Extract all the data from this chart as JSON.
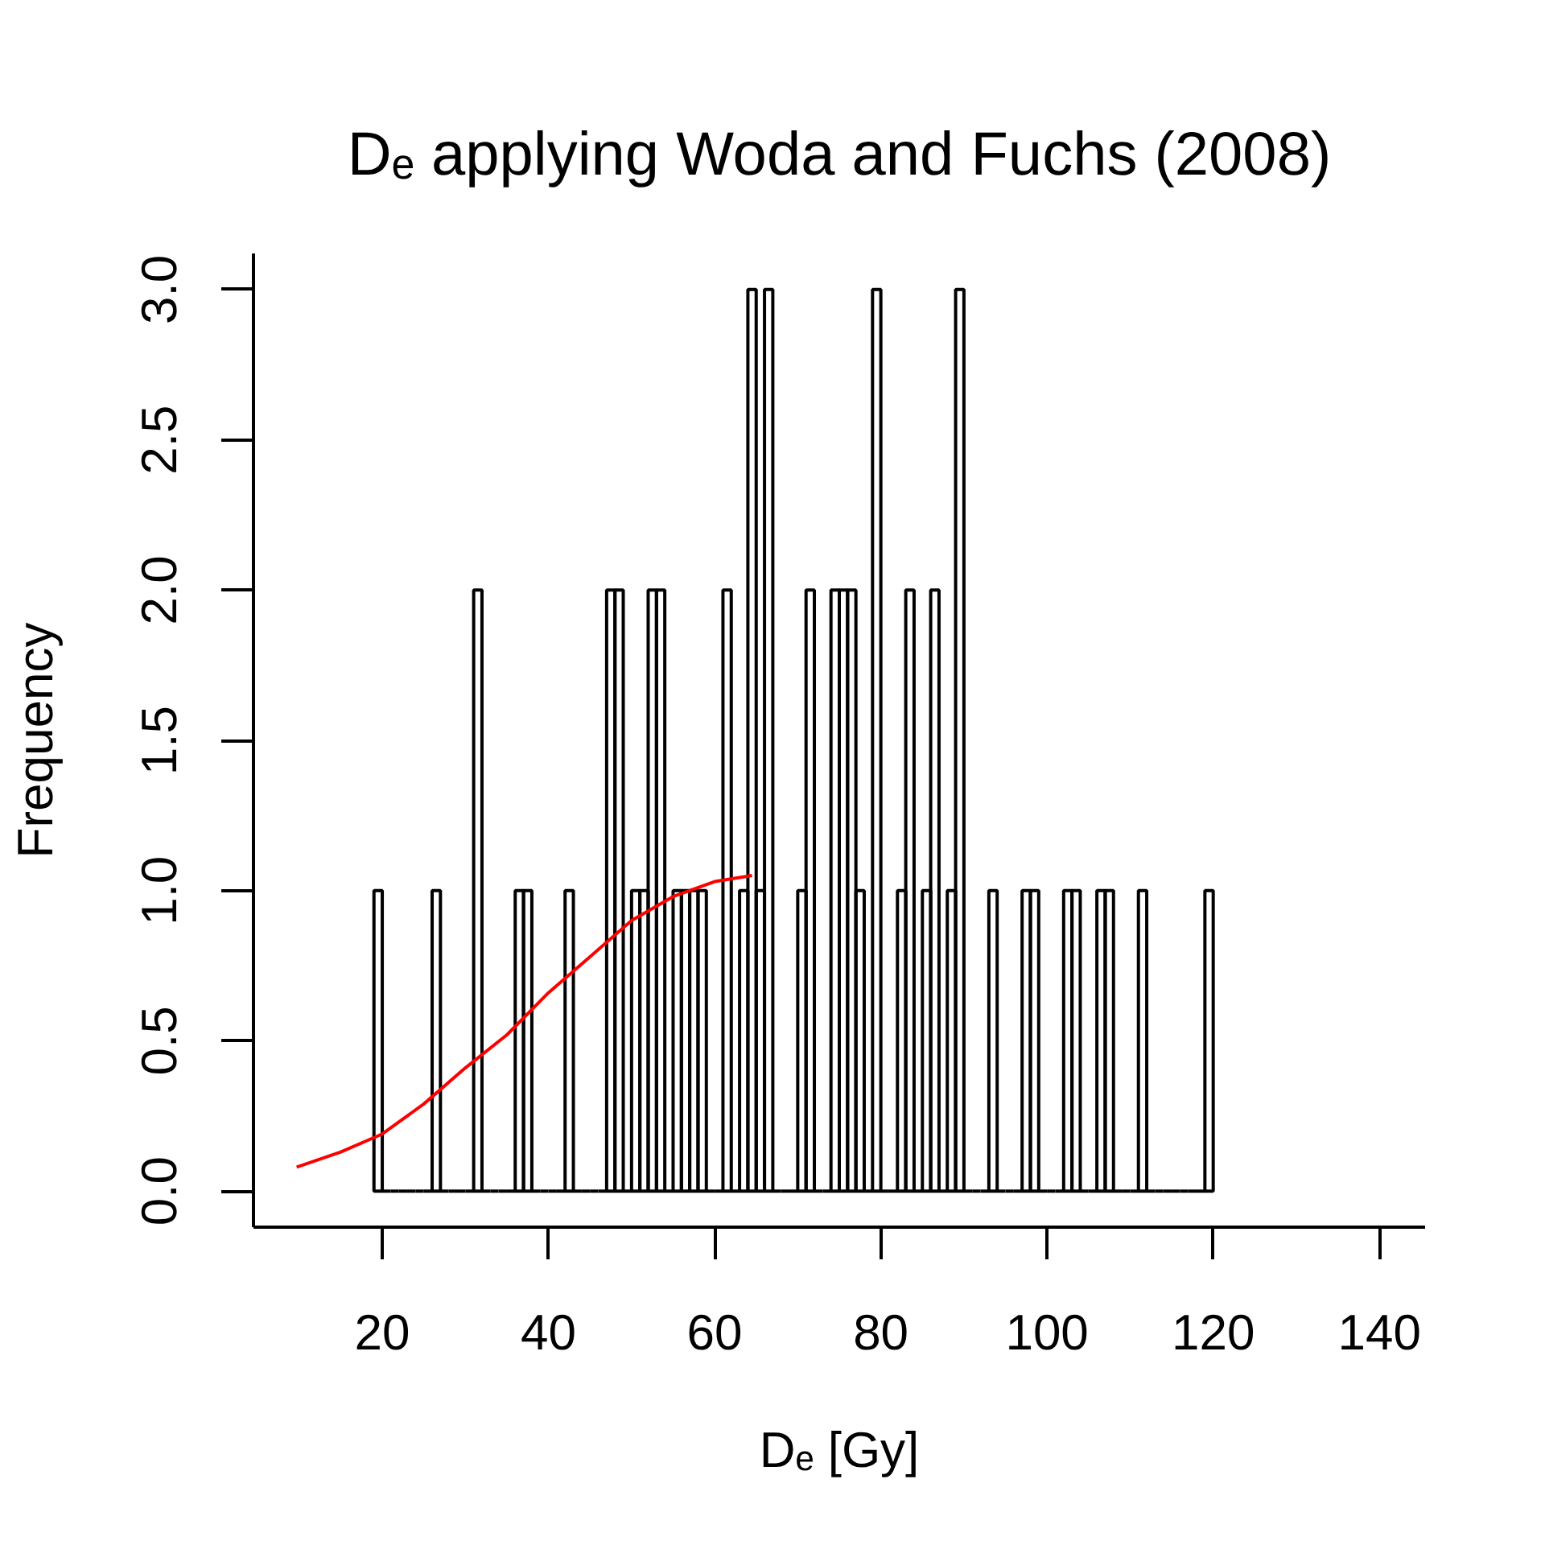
{
  "chart_data": {
    "type": "histogram",
    "title": "Dₑ applying Woda and Fuchs (2008)",
    "xlabel": "Dₑ [Gy]",
    "ylabel": "Frequency",
    "bins": [
      19,
      20,
      21,
      22,
      23,
      24,
      25,
      26,
      27,
      28,
      29,
      30,
      31,
      32,
      33,
      34,
      35,
      36,
      37,
      38,
      39,
      40,
      41,
      42,
      43,
      44,
      45,
      46,
      47,
      48,
      49,
      50,
      51,
      52,
      53,
      54,
      55,
      56,
      57,
      58,
      59,
      60,
      61,
      62,
      63,
      64,
      65,
      66,
      67,
      68,
      69,
      70,
      71,
      72,
      73,
      74,
      75,
      76,
      77,
      78,
      79,
      80,
      81,
      82,
      83,
      84,
      85,
      86,
      87,
      88,
      89,
      90,
      91,
      92,
      93,
      94,
      95,
      96,
      97,
      98,
      99,
      100,
      101,
      102,
      103,
      104,
      105,
      106,
      107,
      108,
      109,
      110,
      111,
      112,
      113,
      114,
      115,
      116,
      117,
      118,
      119,
      120
    ],
    "values": [
      1,
      0,
      0,
      0,
      0,
      0,
      0,
      1,
      0,
      0,
      0,
      0,
      2,
      0,
      0,
      0,
      0,
      1,
      1,
      0,
      0,
      0,
      0,
      1,
      0,
      0,
      0,
      0,
      2,
      2,
      0,
      1,
      1,
      2,
      2,
      0,
      1,
      1,
      1,
      1,
      0,
      0,
      2,
      0,
      1,
      3,
      1,
      3,
      0,
      0,
      0,
      1,
      2,
      0,
      0,
      2,
      2,
      2,
      1,
      0,
      3,
      0,
      0,
      1,
      2,
      0,
      1,
      2,
      0,
      1,
      3,
      0,
      0,
      0,
      1,
      0,
      0,
      0,
      1,
      1,
      0,
      0,
      0,
      1,
      1,
      0,
      0,
      1,
      1,
      0,
      0,
      0,
      1,
      0,
      0,
      0,
      0,
      0,
      0,
      0,
      1
    ],
    "color": "#000000",
    "series": [
      {
        "type": "line",
        "color": "#ff0000",
        "x": [
          9.7,
          15,
          20,
          25,
          30,
          35,
          40,
          45,
          50,
          55,
          60,
          64.5
        ],
        "values": [
          0.08,
          0.13,
          0.19,
          0.29,
          0.41,
          0.52,
          0.66,
          0.78,
          0.9,
          0.98,
          1.03,
          1.05
        ]
      }
    ],
    "xlim": [
      4.5,
      145.5
    ],
    "ylim": [
      -0.12,
      3.12
    ],
    "xticks": [
      20,
      40,
      60,
      80,
      100,
      120,
      140
    ],
    "yticks": [
      {
        "value": 0,
        "label": "0.0"
      },
      0.5,
      {
        "value": 1,
        "label": "1.0"
      },
      1.5,
      {
        "value": 2,
        "label": "2.0"
      },
      2.5,
      {
        "value": 3,
        "label": "3.0"
      }
    ],
    "grid": false
  }
}
